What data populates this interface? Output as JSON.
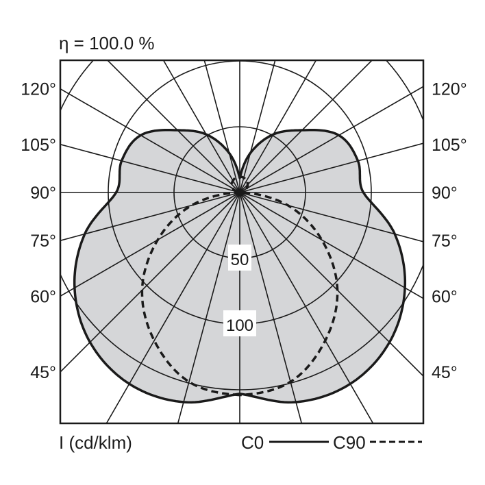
{
  "header": {
    "efficiency": "η = 100.0 %"
  },
  "footer": {
    "unit_label": "I (cd/klm)",
    "legend_c0": "C0",
    "legend_c90": "C90"
  },
  "colors": {
    "fill": "#d5d6d8",
    "line": "#1a1a1a",
    "background": "#ffffff"
  },
  "chart_data": {
    "type": "polar",
    "title": "η = 100.0 %",
    "radial_label": "I (cd/klm)",
    "radial_ticks": [
      50,
      100,
      150
    ],
    "radial_tick_labels": [
      "50",
      "100"
    ],
    "angle_ticks_deg": [
      0,
      15,
      30,
      45,
      60,
      75,
      90,
      105,
      120,
      135,
      150,
      165,
      180
    ],
    "angle_labels": [
      "120°",
      "105°",
      "90°",
      "75°",
      "60°",
      "45°"
    ],
    "angles_deg": [
      0,
      15,
      30,
      45,
      60,
      75,
      90,
      105,
      120,
      135,
      150,
      165,
      180
    ],
    "series": [
      {
        "name": "C0",
        "style": "solid",
        "filled": true,
        "values": [
          153,
          165,
          168,
          161,
          145,
          122,
          94,
          93,
          87,
          67,
          51,
          31,
          11
        ]
      },
      {
        "name": "C90",
        "style": "dashed",
        "filled": false,
        "values": [
          154,
          149,
          130,
          105,
          72,
          38,
          1,
          3,
          6,
          8.5,
          10.4,
          11.6,
          12
        ]
      }
    ],
    "grid": true
  }
}
